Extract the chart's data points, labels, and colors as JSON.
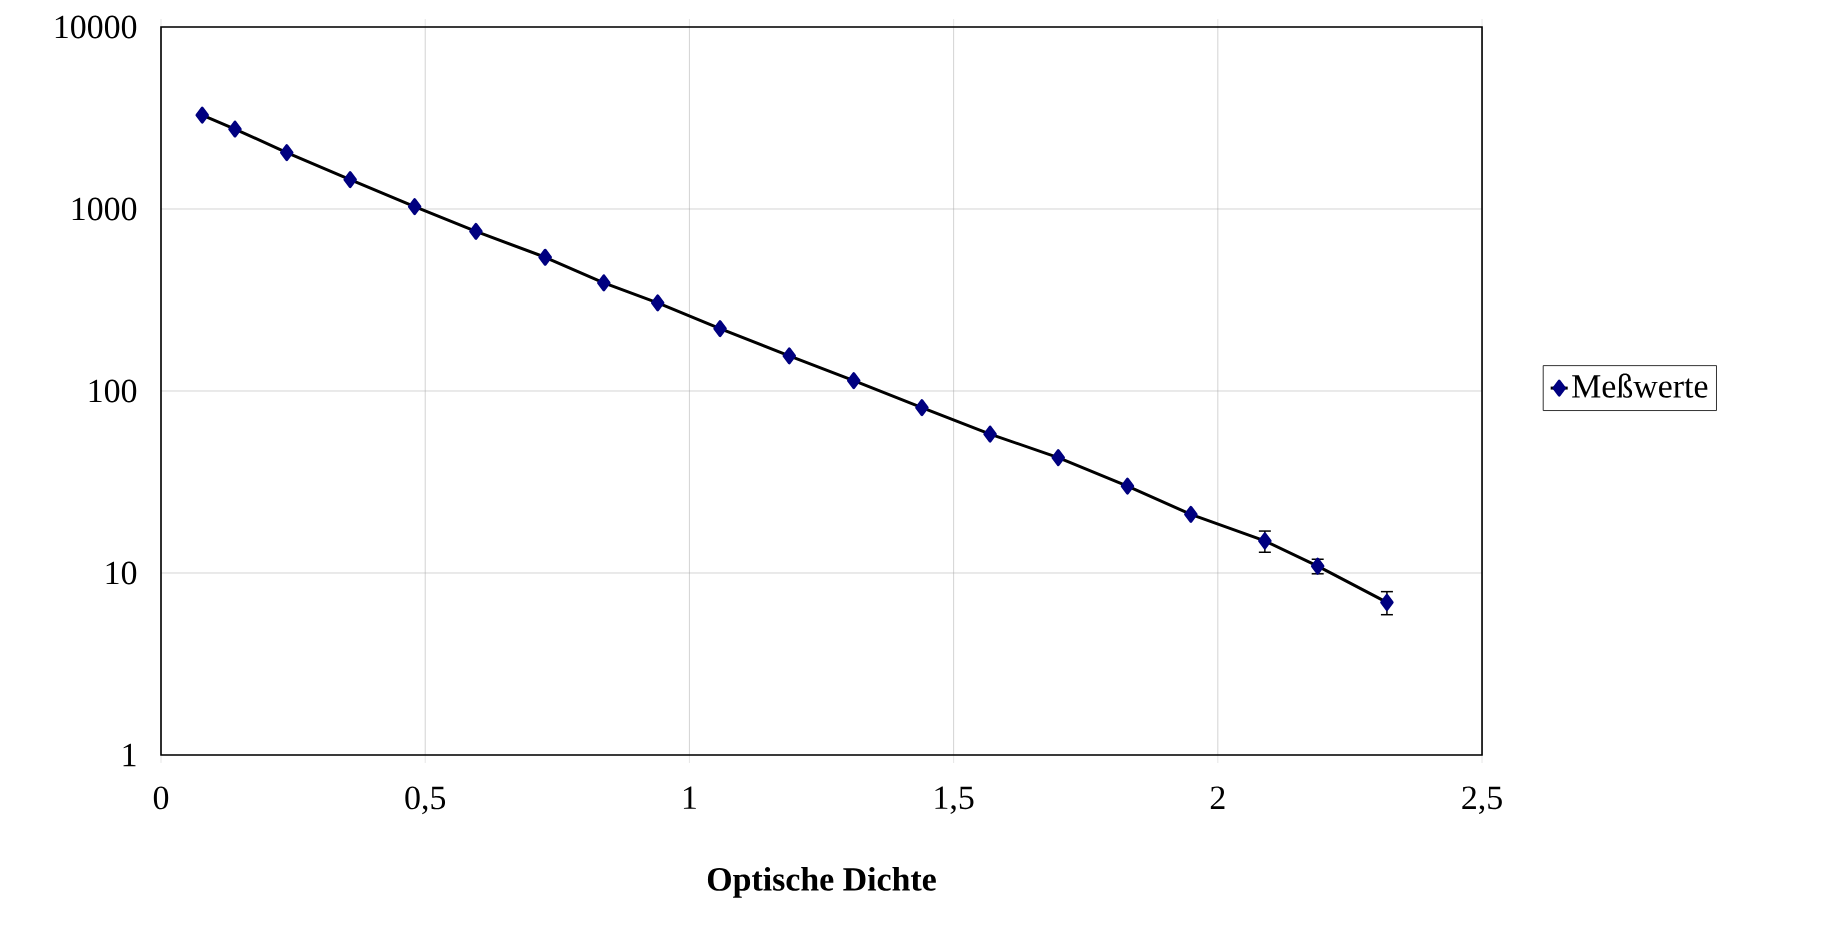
{
  "chart_data": {
    "type": "line",
    "xlabel": "Optische Dichte",
    "x": [
      0.078,
      0.14,
      0.238,
      0.358,
      0.48,
      0.596,
      0.727,
      0.838,
      0.94,
      1.058,
      1.189,
      1.311,
      1.44,
      1.569,
      1.698,
      1.829,
      1.949,
      2.089,
      2.189,
      2.32
    ],
    "series": [
      {
        "name": "Meßwerte",
        "color": "#000080",
        "values": [
          3280,
          2750,
          2040,
          1450,
          1030,
          754,
          543,
          393,
          305,
          220,
          156,
          114,
          81,
          58,
          43,
          30,
          21,
          15,
          10.9,
          6.9
        ],
        "errors": [
          null,
          null,
          null,
          null,
          null,
          null,
          null,
          null,
          null,
          null,
          null,
          null,
          null,
          null,
          null,
          null,
          null,
          2,
          1,
          1
        ]
      }
    ],
    "xlim": [
      0,
      2.5
    ],
    "ylim": [
      1,
      10000
    ],
    "xticks": [
      0,
      {
        "value": 0.5,
        "label": "0,5"
      },
      1,
      {
        "value": 1.5,
        "label": "1,5"
      },
      2,
      {
        "value": 2.5,
        "label": "2,5"
      }
    ],
    "yticks": [
      1,
      10,
      100,
      1000,
      10000
    ],
    "log": "y",
    "grid": true,
    "legend": "right",
    "marker": "diamond",
    "line_style": "solid"
  }
}
